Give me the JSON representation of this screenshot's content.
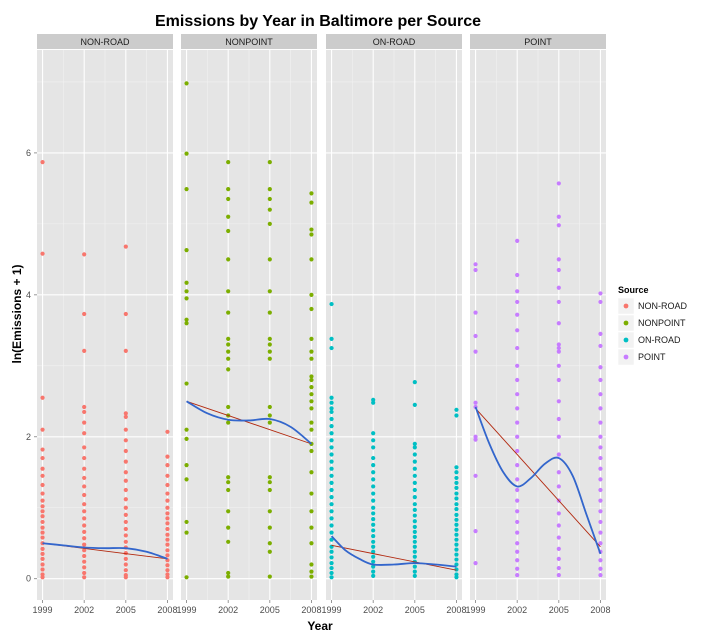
{
  "chart_data": {
    "type": "scatter",
    "title": "Emissions by Year in Baltimore per Source",
    "xlabel": "Year",
    "ylabel": "ln(Emissions + 1)",
    "x_ticks": [
      1999,
      2002,
      2005,
      2008
    ],
    "y_ticks": [
      0,
      2,
      4,
      6
    ],
    "xlim": [
      1998.6,
      2008.4
    ],
    "ylim": [
      -0.3,
      7.45
    ],
    "grid": true,
    "legend": {
      "title": "Source",
      "position": "right",
      "entries": [
        "NON-ROAD",
        "NONPOINT",
        "ON-ROAD",
        "POINT"
      ]
    },
    "colors": {
      "NON-ROAD": "#f8766d",
      "NONPOINT": "#7cae00",
      "ON-ROAD": "#00bfc4",
      "POINT": "#c77cff",
      "linear_fit": "#b2290f",
      "loess_fit": "#3366cc",
      "panel_bg": "#e5e5e5",
      "strip_bg": "#cccccc"
    },
    "panels": [
      {
        "name": "NON-ROAD",
        "color": "#f8766d",
        "points": {
          "1999": [
            5.87,
            4.58,
            2.55,
            2.1,
            1.82,
            1.7,
            1.55,
            1.45,
            1.32,
            1.2,
            1.1,
            1.02,
            0.95,
            0.88,
            0.8,
            0.72,
            0.65,
            0.58,
            0.5,
            0.42,
            0.35,
            0.28,
            0.2,
            0.13,
            0.06,
            0.02
          ],
          "2002": [
            4.57,
            3.73,
            3.21,
            2.42,
            2.35,
            2.2,
            2.05,
            1.85,
            1.7,
            1.55,
            1.42,
            1.3,
            1.18,
            1.05,
            0.95,
            0.85,
            0.75,
            0.66,
            0.57,
            0.48,
            0.4,
            0.32,
            0.24,
            0.16,
            0.08,
            0.02
          ],
          "2005": [
            4.68,
            3.73,
            3.21,
            2.33,
            2.28,
            2.1,
            1.95,
            1.8,
            1.65,
            1.5,
            1.38,
            1.25,
            1.12,
            1.0,
            0.9,
            0.8,
            0.7,
            0.61,
            0.52,
            0.44,
            0.36,
            0.28,
            0.2,
            0.12,
            0.05,
            0.02
          ],
          "2008": [
            2.07,
            1.72,
            1.6,
            1.45,
            1.32,
            1.2,
            1.1,
            1.0,
            0.92,
            0.85,
            0.78,
            0.7,
            0.62,
            0.55,
            0.48,
            0.4,
            0.33,
            0.26,
            0.19,
            0.12,
            0.06,
            0.02
          ]
        },
        "linear_fit": [
          [
            1999,
            0.5
          ],
          [
            2008,
            0.28
          ]
        ],
        "loess_fit": [
          [
            1999,
            0.5
          ],
          [
            2000.5,
            0.47
          ],
          [
            2002,
            0.44
          ],
          [
            2003.5,
            0.43
          ],
          [
            2005,
            0.43
          ],
          [
            2006.5,
            0.38
          ],
          [
            2008,
            0.28
          ]
        ]
      },
      {
        "name": "NONPOINT",
        "color": "#7cae00",
        "points": {
          "1999": [
            6.98,
            5.99,
            5.49,
            4.63,
            4.17,
            4.05,
            3.95,
            3.65,
            3.6,
            2.75,
            2.1,
            1.97,
            1.6,
            1.4,
            0.8,
            0.65,
            0.02
          ],
          "2002": [
            5.87,
            5.49,
            5.35,
            5.1,
            4.9,
            4.5,
            4.05,
            3.75,
            3.38,
            3.3,
            3.2,
            3.1,
            2.95,
            2.42,
            2.3,
            2.2,
            1.43,
            1.36,
            1.25,
            0.95,
            0.72,
            0.52,
            0.08,
            0.03
          ],
          "2005": [
            5.87,
            5.49,
            5.35,
            5.2,
            5.0,
            4.5,
            4.05,
            3.75,
            3.38,
            3.3,
            3.2,
            3.1,
            2.42,
            2.3,
            2.2,
            1.43,
            1.36,
            1.25,
            0.95,
            0.72,
            0.5,
            0.38,
            0.03
          ],
          "2008": [
            5.43,
            5.3,
            4.92,
            4.85,
            4.5,
            4.0,
            3.8,
            3.38,
            3.2,
            3.1,
            2.85,
            2.8,
            2.7,
            2.6,
            2.5,
            2.4,
            2.2,
            2.1,
            1.9,
            1.8,
            1.5,
            1.2,
            0.95,
            0.72,
            0.5,
            0.2,
            0.1,
            0.03
          ]
        },
        "linear_fit": [
          [
            1999,
            2.5
          ],
          [
            2008,
            1.9
          ]
        ],
        "loess_fit": [
          [
            1999,
            2.5
          ],
          [
            2000.5,
            2.33
          ],
          [
            2002,
            2.24
          ],
          [
            2003.5,
            2.23
          ],
          [
            2005,
            2.25
          ],
          [
            2006.5,
            2.14
          ],
          [
            2008,
            1.9
          ]
        ]
      },
      {
        "name": "ON-ROAD",
        "color": "#00bfc4",
        "points": {
          "1999": [
            3.87,
            3.38,
            3.25,
            2.55,
            2.48,
            2.4,
            2.35,
            2.25,
            2.15,
            2.05,
            1.95,
            1.85,
            1.75,
            1.65,
            1.55,
            1.45,
            1.35,
            1.25,
            1.15,
            1.05,
            0.95,
            0.85,
            0.75,
            0.65,
            0.55,
            0.45,
            0.38,
            0.3,
            0.22,
            0.15,
            0.08,
            0.02
          ],
          "2002": [
            2.52,
            2.48,
            2.05,
            1.95,
            1.85,
            1.7,
            1.6,
            1.5,
            1.4,
            1.3,
            1.2,
            1.1,
            1.0,
            0.92,
            0.84,
            0.76,
            0.68,
            0.6,
            0.52,
            0.45,
            0.38,
            0.31,
            0.24,
            0.17,
            0.1,
            0.04
          ],
          "2005": [
            2.77,
            2.45,
            1.9,
            1.85,
            1.75,
            1.65,
            1.55,
            1.45,
            1.35,
            1.25,
            1.15,
            1.05,
            0.97,
            0.89,
            0.81,
            0.73,
            0.66,
            0.59,
            0.52,
            0.45,
            0.38,
            0.31,
            0.24,
            0.17,
            0.1,
            0.04
          ],
          "2008": [
            2.38,
            2.3,
            1.57,
            1.5,
            1.42,
            1.35,
            1.28,
            1.2,
            1.13,
            1.05,
            0.98,
            0.9,
            0.83,
            0.76,
            0.69,
            0.62,
            0.55,
            0.48,
            0.41,
            0.34,
            0.27,
            0.2,
            0.13,
            0.06,
            0.02
          ]
        },
        "linear_fit": [
          [
            1999,
            0.47
          ],
          [
            2008,
            0.12
          ]
        ],
        "loess_fit": [
          [
            1999,
            0.6
          ],
          [
            2000,
            0.4
          ],
          [
            2001,
            0.28
          ],
          [
            2002,
            0.2
          ],
          [
            2003.5,
            0.2
          ],
          [
            2005,
            0.22
          ],
          [
            2006.5,
            0.2
          ],
          [
            2008,
            0.17
          ]
        ]
      },
      {
        "name": "POINT",
        "color": "#c77cff",
        "points": {
          "1999": [
            4.43,
            4.35,
            3.75,
            3.42,
            3.2,
            2.48,
            2.42,
            2.0,
            1.96,
            1.45,
            0.67,
            0.22
          ],
          "2002": [
            4.76,
            4.28,
            4.05,
            3.9,
            3.72,
            3.5,
            3.25,
            3.0,
            2.8,
            2.6,
            2.4,
            2.2,
            2.0,
            1.8,
            1.6,
            1.4,
            1.25,
            1.1,
            0.95,
            0.8,
            0.65,
            0.5,
            0.38,
            0.26,
            0.14,
            0.05
          ],
          "2005": [
            5.57,
            5.1,
            4.98,
            4.5,
            4.35,
            4.1,
            3.9,
            3.6,
            3.3,
            3.25,
            3.2,
            3.0,
            2.8,
            2.5,
            2.25,
            2.0,
            1.75,
            1.5,
            1.3,
            1.1,
            0.92,
            0.75,
            0.58,
            0.42,
            0.28,
            0.15,
            0.05
          ],
          "2008": [
            4.02,
            3.9,
            3.45,
            3.28,
            2.98,
            2.8,
            2.6,
            2.4,
            2.2,
            2.0,
            1.85,
            1.7,
            1.55,
            1.4,
            1.25,
            1.1,
            0.95,
            0.8,
            0.65,
            0.5,
            0.38,
            0.26,
            0.14,
            0.05
          ]
        },
        "linear_fit": [
          [
            1999,
            2.4
          ],
          [
            2008,
            0.45
          ]
        ],
        "loess_fit": [
          [
            1999,
            2.42
          ],
          [
            2000,
            1.9
          ],
          [
            2001,
            1.5
          ],
          [
            2002,
            1.3
          ],
          [
            2003,
            1.42
          ],
          [
            2004,
            1.62
          ],
          [
            2005,
            1.7
          ],
          [
            2006,
            1.45
          ],
          [
            2007,
            0.9
          ],
          [
            2008,
            0.35
          ]
        ]
      }
    ]
  }
}
